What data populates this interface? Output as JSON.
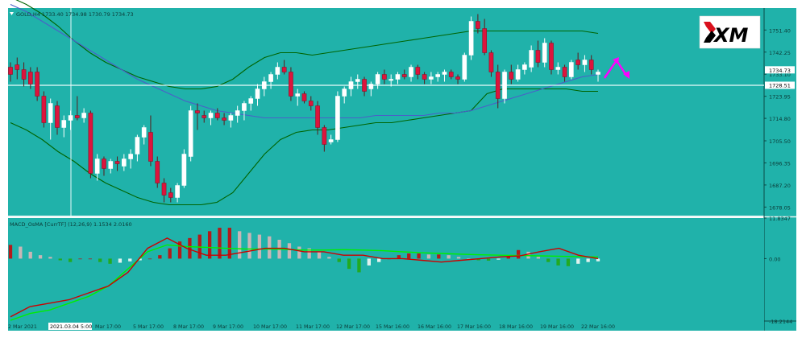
{
  "chart_data": [
    {
      "type": "candlestick",
      "title": "GOLD,H4  1733.40 1734.98 1730.79 1734.73",
      "symbol": "GOLD",
      "timeframe": "H4",
      "ohlc_header": {
        "open": 1733.4,
        "high": 1734.98,
        "low": 1730.79,
        "close": 1734.73
      },
      "price_axis_ticks": [
        "1751.40",
        "1742.25",
        "1733.10",
        "1723.95",
        "1714.80",
        "1705.50",
        "1696.35",
        "1687.20",
        "1678.05"
      ],
      "price_range": [
        1674.5,
        1760.5
      ],
      "current_price_label": "1734.73",
      "horizontal_line_label": "1728.51",
      "horizontal_line_price": 1728.51,
      "bullish_color": "#ffffff",
      "bearish_color": "#dc143c",
      "background_color": "#20b2aa",
      "bollinger_color": "#006400",
      "moving_average_color": "#4b5fc9",
      "forecast_arrow_color": "#ff00ff",
      "logo_text": "XM",
      "bollinger_upper": [
        1765,
        1762,
        1758,
        1753,
        1747,
        1742,
        1738,
        1735,
        1732,
        1730,
        1728,
        1727,
        1727,
        1728,
        1731,
        1736,
        1740,
        1742,
        1742,
        1741,
        1742,
        1743,
        1744,
        1745,
        1746,
        1747,
        1748,
        1749,
        1750,
        1751,
        1751,
        1751,
        1751,
        1751,
        1751,
        1751,
        1751,
        1750
      ],
      "bollinger_lower": [
        1713,
        1710,
        1706,
        1701,
        1697,
        1692,
        1688,
        1685,
        1682,
        1680,
        1679,
        1679,
        1679,
        1680,
        1684,
        1692,
        1700,
        1706,
        1709,
        1710,
        1710,
        1711,
        1712,
        1713,
        1713,
        1714,
        1715,
        1716,
        1717,
        1718,
        1725,
        1727,
        1727,
        1727,
        1727,
        1727,
        1726,
        1726
      ],
      "moving_average": [
        1762,
        1759,
        1755,
        1751,
        1747,
        1743,
        1739,
        1735,
        1731,
        1728,
        1725,
        1722,
        1720,
        1718,
        1717,
        1716,
        1715,
        1715,
        1715,
        1715,
        1715,
        1715,
        1715,
        1716,
        1716,
        1716,
        1716,
        1717,
        1717,
        1718,
        1720,
        1722,
        1724,
        1726,
        1728,
        1730,
        1732,
        1733
      ],
      "candles": [
        {
          "o": 1736,
          "h": 1738,
          "l": 1730,
          "c": 1733
        },
        {
          "o": 1737,
          "h": 1740,
          "l": 1731,
          "c": 1735
        },
        {
          "o": 1735,
          "h": 1738,
          "l": 1728,
          "c": 1731
        },
        {
          "o": 1734,
          "h": 1736,
          "l": 1727,
          "c": 1729
        },
        {
          "o": 1734,
          "h": 1736,
          "l": 1722,
          "c": 1724
        },
        {
          "o": 1724,
          "h": 1726,
          "l": 1711,
          "c": 1713
        },
        {
          "o": 1713,
          "h": 1723,
          "l": 1706,
          "c": 1721
        },
        {
          "o": 1720,
          "h": 1722,
          "l": 1708,
          "c": 1711
        },
        {
          "o": 1711,
          "h": 1716,
          "l": 1707,
          "c": 1714
        },
        {
          "o": 1714,
          "h": 1718,
          "l": 1710,
          "c": 1716
        },
        {
          "o": 1716,
          "h": 1724,
          "l": 1714,
          "c": 1715
        },
        {
          "o": 1715,
          "h": 1719,
          "l": 1713,
          "c": 1717
        },
        {
          "o": 1717,
          "h": 1718,
          "l": 1690,
          "c": 1692
        },
        {
          "o": 1692,
          "h": 1700,
          "l": 1689,
          "c": 1698
        },
        {
          "o": 1698,
          "h": 1699,
          "l": 1691,
          "c": 1694
        },
        {
          "o": 1694,
          "h": 1698,
          "l": 1692,
          "c": 1697
        },
        {
          "o": 1697,
          "h": 1699,
          "l": 1693,
          "c": 1696
        },
        {
          "o": 1695,
          "h": 1700,
          "l": 1693,
          "c": 1698
        },
        {
          "o": 1698,
          "h": 1702,
          "l": 1694,
          "c": 1700
        },
        {
          "o": 1700,
          "h": 1708,
          "l": 1697,
          "c": 1707
        },
        {
          "o": 1707,
          "h": 1712,
          "l": 1704,
          "c": 1711
        },
        {
          "o": 1709,
          "h": 1716,
          "l": 1695,
          "c": 1697
        },
        {
          "o": 1697,
          "h": 1699,
          "l": 1686,
          "c": 1688
        },
        {
          "o": 1688,
          "h": 1690,
          "l": 1680,
          "c": 1683
        },
        {
          "o": 1684,
          "h": 1686,
          "l": 1680,
          "c": 1682
        },
        {
          "o": 1682,
          "h": 1688,
          "l": 1680,
          "c": 1687
        },
        {
          "o": 1687,
          "h": 1702,
          "l": 1686,
          "c": 1700
        },
        {
          "o": 1699,
          "h": 1720,
          "l": 1697,
          "c": 1718
        },
        {
          "o": 1718,
          "h": 1721,
          "l": 1710,
          "c": 1717
        },
        {
          "o": 1716,
          "h": 1718,
          "l": 1713,
          "c": 1715
        },
        {
          "o": 1715,
          "h": 1718,
          "l": 1712,
          "c": 1717
        },
        {
          "o": 1717,
          "h": 1719,
          "l": 1714,
          "c": 1715
        },
        {
          "o": 1715,
          "h": 1717,
          "l": 1712,
          "c": 1714
        },
        {
          "o": 1714,
          "h": 1717,
          "l": 1711,
          "c": 1716
        },
        {
          "o": 1716,
          "h": 1720,
          "l": 1713,
          "c": 1718
        },
        {
          "o": 1718,
          "h": 1722,
          "l": 1714,
          "c": 1721
        },
        {
          "o": 1721,
          "h": 1724,
          "l": 1718,
          "c": 1723
        },
        {
          "o": 1723,
          "h": 1729,
          "l": 1720,
          "c": 1727
        },
        {
          "o": 1727,
          "h": 1732,
          "l": 1724,
          "c": 1730
        },
        {
          "o": 1730,
          "h": 1734,
          "l": 1727,
          "c": 1733
        },
        {
          "o": 1733,
          "h": 1738,
          "l": 1731,
          "c": 1736
        },
        {
          "o": 1736,
          "h": 1739,
          "l": 1733,
          "c": 1734
        },
        {
          "o": 1734,
          "h": 1736,
          "l": 1722,
          "c": 1724
        },
        {
          "o": 1724,
          "h": 1727,
          "l": 1720,
          "c": 1725
        },
        {
          "o": 1725,
          "h": 1726,
          "l": 1721,
          "c": 1722
        },
        {
          "o": 1722,
          "h": 1724,
          "l": 1718,
          "c": 1720
        },
        {
          "o": 1720,
          "h": 1722,
          "l": 1708,
          "c": 1711
        },
        {
          "o": 1711,
          "h": 1712,
          "l": 1701,
          "c": 1704
        },
        {
          "o": 1705,
          "h": 1708,
          "l": 1704,
          "c": 1706
        },
        {
          "o": 1706,
          "h": 1726,
          "l": 1705,
          "c": 1724
        },
        {
          "o": 1724,
          "h": 1728,
          "l": 1721,
          "c": 1727
        },
        {
          "o": 1727,
          "h": 1732,
          "l": 1724,
          "c": 1730
        },
        {
          "o": 1730,
          "h": 1733,
          "l": 1727,
          "c": 1731
        },
        {
          "o": 1731,
          "h": 1732,
          "l": 1724,
          "c": 1726
        },
        {
          "o": 1727,
          "h": 1730,
          "l": 1724,
          "c": 1729
        },
        {
          "o": 1729,
          "h": 1734,
          "l": 1727,
          "c": 1733
        },
        {
          "o": 1733,
          "h": 1735,
          "l": 1729,
          "c": 1731
        },
        {
          "o": 1731,
          "h": 1733,
          "l": 1728,
          "c": 1731
        },
        {
          "o": 1731,
          "h": 1734,
          "l": 1729,
          "c": 1733
        },
        {
          "o": 1733,
          "h": 1735,
          "l": 1731,
          "c": 1732
        },
        {
          "o": 1732,
          "h": 1737,
          "l": 1730,
          "c": 1736
        },
        {
          "o": 1736,
          "h": 1737,
          "l": 1731,
          "c": 1733
        },
        {
          "o": 1733,
          "h": 1734,
          "l": 1729,
          "c": 1731
        },
        {
          "o": 1731,
          "h": 1734,
          "l": 1729,
          "c": 1732
        },
        {
          "o": 1732,
          "h": 1734,
          "l": 1730,
          "c": 1733
        },
        {
          "o": 1733,
          "h": 1735,
          "l": 1730,
          "c": 1734
        },
        {
          "o": 1734,
          "h": 1735,
          "l": 1731,
          "c": 1732
        },
        {
          "o": 1732,
          "h": 1733,
          "l": 1729,
          "c": 1731
        },
        {
          "o": 1731,
          "h": 1742,
          "l": 1730,
          "c": 1741
        },
        {
          "o": 1741,
          "h": 1757,
          "l": 1739,
          "c": 1755
        },
        {
          "o": 1755,
          "h": 1758,
          "l": 1750,
          "c": 1752
        },
        {
          "o": 1752,
          "h": 1756,
          "l": 1741,
          "c": 1742
        },
        {
          "o": 1742,
          "h": 1743,
          "l": 1732,
          "c": 1734
        },
        {
          "o": 1734,
          "h": 1737,
          "l": 1719,
          "c": 1723
        },
        {
          "o": 1723,
          "h": 1735,
          "l": 1721,
          "c": 1734
        },
        {
          "o": 1734,
          "h": 1737,
          "l": 1729,
          "c": 1731
        },
        {
          "o": 1731,
          "h": 1737,
          "l": 1730,
          "c": 1735
        },
        {
          "o": 1735,
          "h": 1738,
          "l": 1733,
          "c": 1737
        },
        {
          "o": 1736,
          "h": 1745,
          "l": 1734,
          "c": 1743
        },
        {
          "o": 1743,
          "h": 1747,
          "l": 1736,
          "c": 1738
        },
        {
          "o": 1738,
          "h": 1748,
          "l": 1736,
          "c": 1746
        },
        {
          "o": 1746,
          "h": 1747,
          "l": 1733,
          "c": 1735
        },
        {
          "o": 1735,
          "h": 1738,
          "l": 1733,
          "c": 1736
        },
        {
          "o": 1736,
          "h": 1737,
          "l": 1730,
          "c": 1732
        },
        {
          "o": 1732,
          "h": 1739,
          "l": 1731,
          "c": 1738
        },
        {
          "o": 1739,
          "h": 1742,
          "l": 1735,
          "c": 1737
        },
        {
          "o": 1737,
          "h": 1741,
          "l": 1734,
          "c": 1739
        },
        {
          "o": 1739,
          "h": 1741,
          "l": 1733,
          "c": 1735
        },
        {
          "o": 1733,
          "h": 1735,
          "l": 1730,
          "c": 1734
        }
      ],
      "x_labels": [
        "2 Mar 2021",
        "2021.03.04 5:00",
        "Mar 17:00",
        "5 Mar 17:00",
        "8 Mar 17:00",
        "9 Mar 17:00",
        "10 Mar 17:00",
        "11 Mar 17:00",
        "12 Mar 17:00",
        "15 Mar 16:00",
        "16 Mar 16:00",
        "17 Mar 16:00",
        "18 Mar 16:00",
        "19 Mar 16:00",
        "22 Mar 16:00"
      ],
      "crosshair_label": "2021.03.04 5:00"
    },
    {
      "type": "bar",
      "title": "MACD_OsMA [CurrTF] (12,26,9) 1.1534 2.0160",
      "indicator": "MACD_OsMA",
      "timeframe_label": "CurrTF",
      "params": [
        12,
        26,
        9
      ],
      "values_header": [
        1.1534,
        2.016
      ],
      "axis_ticks": [
        "11.8347",
        "0.00",
        "-18.2144"
      ],
      "y_range": [
        -18.2144,
        11.8347
      ],
      "macd_line_color": "#cc0000",
      "signal_line_color": "#00ee00",
      "histogram": [
        4,
        3.5,
        2,
        1,
        0.5,
        -0.5,
        -1,
        0,
        0,
        -1,
        -1.5,
        -1.2,
        -0.8,
        -0.5,
        0,
        1,
        3,
        5,
        6,
        7,
        8,
        9,
        9,
        8,
        7.5,
        7,
        6.5,
        5.5,
        4.5,
        3.5,
        3,
        2,
        0.5,
        -1,
        -3,
        -4,
        -2,
        -1,
        0,
        1,
        1.5,
        1.5,
        1.2,
        1.2,
        1,
        0.5,
        0,
        -0.5,
        -0.6,
        -0.3,
        0.6,
        2.5,
        2,
        0.5,
        -1,
        -2,
        -2.2,
        -1.5,
        -1,
        -0.8
      ],
      "macd_line": [
        -17,
        -14,
        -13,
        -12,
        -10,
        -8,
        -4,
        3,
        6,
        3,
        1,
        1,
        2,
        3,
        3,
        2,
        2,
        1,
        1,
        0,
        0,
        -0.5,
        -1,
        -0.5,
        0,
        0.5,
        0.8,
        2,
        3,
        1,
        0
      ],
      "signal_line": [
        -18,
        -16,
        -15,
        -13,
        -11,
        -8,
        -3,
        2,
        4,
        3.5,
        3.3,
        3,
        2.8,
        2.8,
        2.7,
        2.5,
        2.5,
        2.6,
        2.5,
        2.3,
        2,
        1.7,
        1.5,
        1.3,
        1.1,
        1,
        0.9,
        0.8,
        0.7,
        0.6,
        0.5
      ]
    }
  ]
}
